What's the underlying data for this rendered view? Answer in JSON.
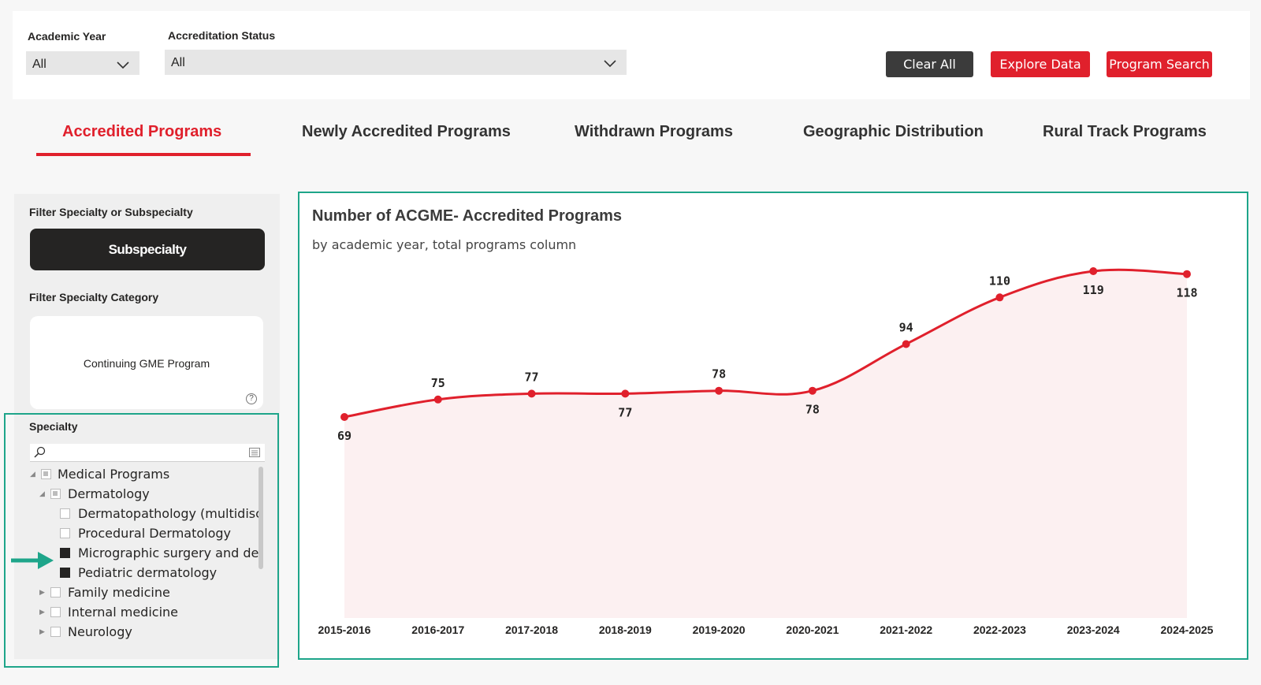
{
  "filters": {
    "academic_year": {
      "label": "Academic Year",
      "value": "All"
    },
    "accreditation_status": {
      "label": "Accreditation Status",
      "value": "All"
    }
  },
  "buttons": {
    "clear_all": "Clear All",
    "explore_data": "Explore Data",
    "program_search": "Program Search"
  },
  "tabs": [
    {
      "label": "Accredited Programs"
    },
    {
      "label": "Newly Accredited Programs"
    },
    {
      "label": "Withdrawn Programs"
    },
    {
      "label": "Geographic Distribution"
    },
    {
      "label": "Rural Track Programs"
    }
  ],
  "left_panel": {
    "filter_specialty_title": "Filter Specialty or Subspecialty",
    "toggle_label": "Subspecialty",
    "filter_category_title": "Filter Specialty Category",
    "category_value": "Continuing GME Program",
    "specialty_title": "Specialty",
    "tree": [
      {
        "label": "Medical Programs",
        "state": "partial"
      },
      {
        "label": "Dermatology",
        "state": "partial"
      },
      {
        "label": "Dermatopathology (multidisci...",
        "state": "unchecked"
      },
      {
        "label": "Procedural Dermatology",
        "state": "unchecked"
      },
      {
        "label": "Micrographic surgery and der...",
        "state": "checked"
      },
      {
        "label": "Pediatric dermatology",
        "state": "checked"
      },
      {
        "label": "Family medicine",
        "state": "unchecked"
      },
      {
        "label": "Internal medicine",
        "state": "unchecked"
      },
      {
        "label": "Neurology",
        "state": "unchecked"
      }
    ]
  },
  "colors": {
    "accent": "#e0202c",
    "highlight": "#1ea58a",
    "area_fill": "#fcf0f1"
  },
  "chart_data": {
    "type": "area",
    "title": "Number of ACGME- Accredited Programs",
    "subtitle": "by academic year, total programs column",
    "categories": [
      "2015-2016",
      "2016-2017",
      "2017-2018",
      "2018-2019",
      "2019-2020",
      "2020-2021",
      "2021-2022",
      "2022-2023",
      "2023-2024",
      "2024-2025"
    ],
    "values": [
      69,
      75,
      77,
      77,
      78,
      78,
      94,
      110,
      119,
      118
    ],
    "label_position": [
      "below",
      "above",
      "above",
      "below",
      "above",
      "below",
      "above",
      "above",
      "below",
      "below"
    ],
    "ylim": [
      0,
      125
    ],
    "xlabel": "",
    "ylabel": ""
  }
}
